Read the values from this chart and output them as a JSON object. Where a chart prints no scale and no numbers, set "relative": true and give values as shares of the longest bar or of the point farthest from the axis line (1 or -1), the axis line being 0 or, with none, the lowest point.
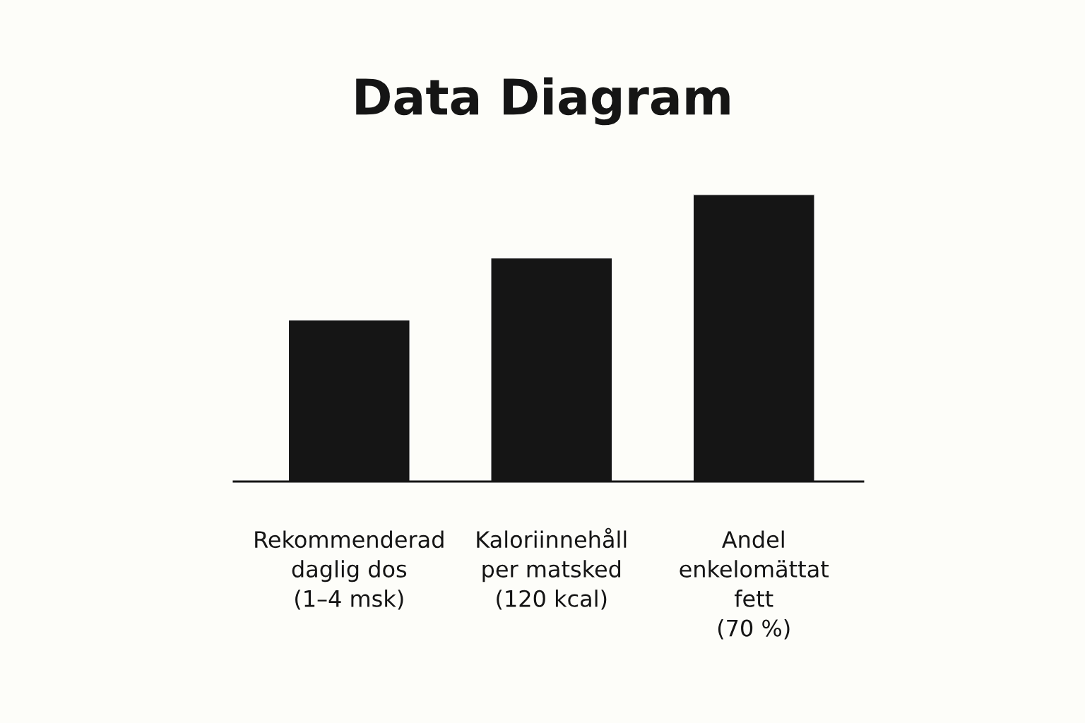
{
  "chart_data": {
    "type": "bar",
    "title": "Data Diagram",
    "relative": true,
    "categories": [
      "Rekommenderad\ndaglig dos\n(1–4 msk)",
      "Kaloriinnehåll\nper matsked\n(120 kcal)",
      "Andel\nenkelomättat\nfett\n(70 %)"
    ],
    "values": [
      0.563,
      0.779,
      1
    ],
    "color": "#151515",
    "grid": false,
    "legend": false
  }
}
